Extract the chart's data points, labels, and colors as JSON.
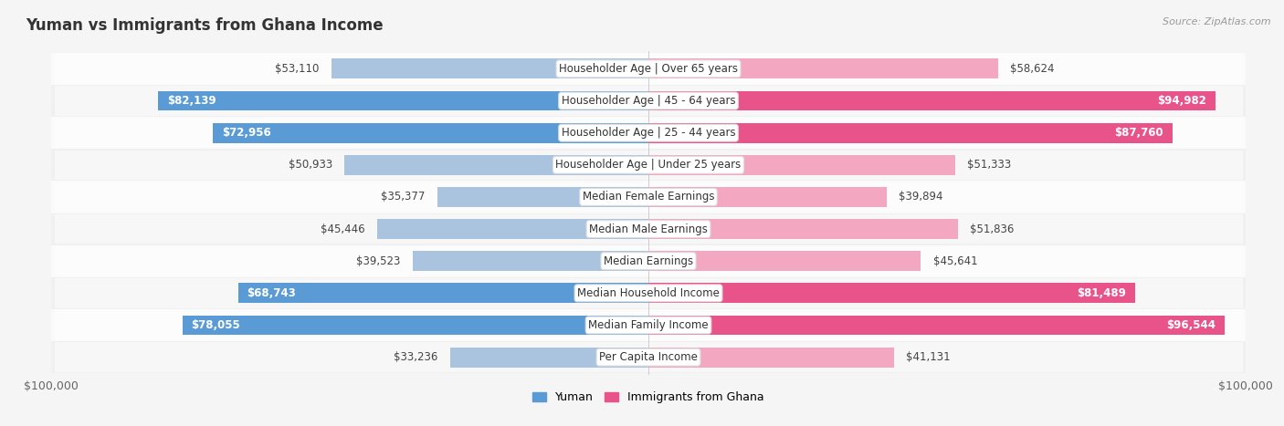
{
  "title": "Yuman vs Immigrants from Ghana Income",
  "source": "Source: ZipAtlas.com",
  "categories": [
    "Per Capita Income",
    "Median Family Income",
    "Median Household Income",
    "Median Earnings",
    "Median Male Earnings",
    "Median Female Earnings",
    "Householder Age | Under 25 years",
    "Householder Age | 25 - 44 years",
    "Householder Age | 45 - 64 years",
    "Householder Age | Over 65 years"
  ],
  "yuman_values": [
    33236,
    78055,
    68743,
    39523,
    45446,
    35377,
    50933,
    72956,
    82139,
    53110
  ],
  "ghana_values": [
    41131,
    96544,
    81489,
    45641,
    51836,
    39894,
    51333,
    87760,
    94982,
    58624
  ],
  "yuman_color_light": "#aac4e0",
  "yuman_color_dark": "#5b9bd5",
  "ghana_color_light": "#f4a7c0",
  "ghana_color_dark": "#e8538a",
  "yuman_label": "Yuman",
  "ghana_label": "Immigrants from Ghana",
  "axis_max": 100000,
  "bar_height": 0.62,
  "row_colors": [
    "#f0f0f0",
    "#fafafa"
  ],
  "label_fontsize": 8.5,
  "title_fontsize": 12,
  "value_fontsize": 8.5,
  "white_text_threshold": 60000
}
